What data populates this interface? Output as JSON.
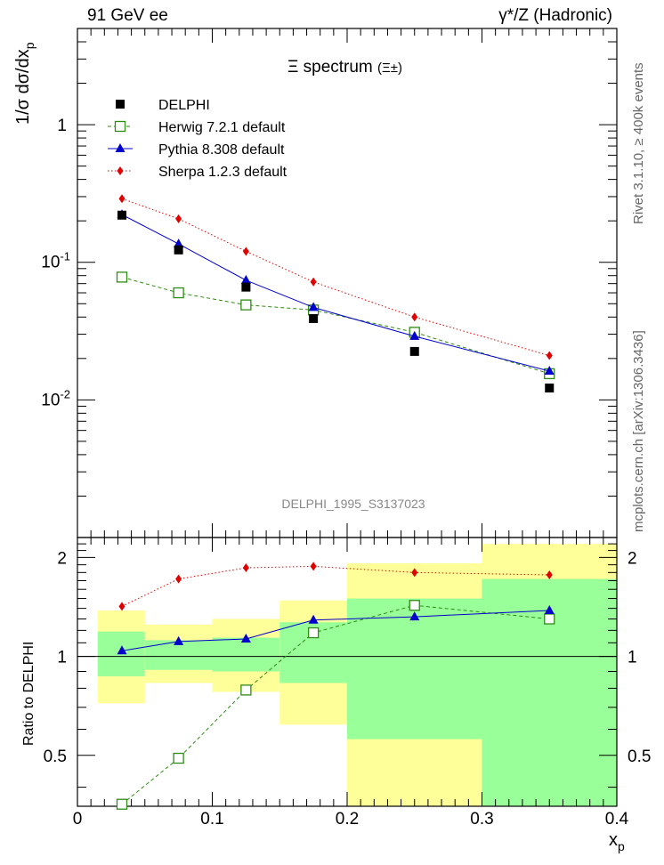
{
  "header": {
    "left": "91 GeV ee",
    "right": "γ*/Z (Hadronic)"
  },
  "side_labels": {
    "rivet": "Rivet 3.1.10, ≥ 400k events",
    "mcplots": "mcplots.cern.ch [arXiv:1306.3436]"
  },
  "chart_data": {
    "type": "line",
    "title": "Ξ spectrum (Ξ±)",
    "watermark": "DELPHI_1995_S3137023",
    "xlabel": "x_p",
    "ylabel": "1/σ dσ/dx_p",
    "ratio_ylabel": "Ratio to DELPHI",
    "xlim": [
      0,
      0.4
    ],
    "ylim": [
      0.001,
      5
    ],
    "yscale": "log",
    "ratio_ylim": [
      0.35,
      2.3
    ],
    "x_ticks": [
      "0",
      "0.1",
      "0.2",
      "0.3",
      "0.4"
    ],
    "y_ticks": [
      "10^-2",
      "10^-1",
      "1"
    ],
    "ratio_ticks": [
      "0.5",
      "1",
      "2"
    ],
    "legend_position": "top-left",
    "x": [
      0.033,
      0.075,
      0.125,
      0.175,
      0.25,
      0.35
    ],
    "bin_edges": [
      0.015,
      0.05,
      0.1,
      0.15,
      0.2,
      0.3,
      0.4
    ],
    "data": {
      "name": "DELPHI",
      "values": [
        0.22,
        0.123,
        0.066,
        0.039,
        0.0225,
        0.0122
      ]
    },
    "band_inner": {
      "low": [
        0.87,
        0.91,
        0.9,
        0.83,
        0.56,
        0.32
      ],
      "high": [
        1.19,
        1.12,
        1.14,
        1.27,
        1.5,
        1.72
      ]
    },
    "band_outer": {
      "low": [
        0.72,
        0.83,
        0.78,
        0.62,
        0.32,
        0.32
      ],
      "high": [
        1.38,
        1.25,
        1.3,
        1.48,
        1.92,
        2.2
      ]
    },
    "series": [
      {
        "name": "Herwig 7.2.1 default",
        "color": "#2e8b14",
        "values": [
          0.078,
          0.06,
          0.049,
          0.045,
          0.031,
          0.0155
        ],
        "ratio": [
          0.355,
          0.49,
          0.79,
          1.18,
          1.43,
          1.3
        ]
      },
      {
        "name": "Pythia 8.308 default",
        "color": "#0000cc",
        "values": [
          0.222,
          0.136,
          0.074,
          0.047,
          0.029,
          0.0162
        ],
        "ratio": [
          1.04,
          1.11,
          1.13,
          1.29,
          1.32,
          1.38
        ]
      },
      {
        "name": "Sherpa 1.2.3 default",
        "color": "#e00000",
        "values": [
          0.29,
          0.207,
          0.12,
          0.072,
          0.04,
          0.021
        ],
        "ratio": [
          1.42,
          1.72,
          1.86,
          1.88,
          1.8,
          1.77
        ]
      }
    ]
  }
}
